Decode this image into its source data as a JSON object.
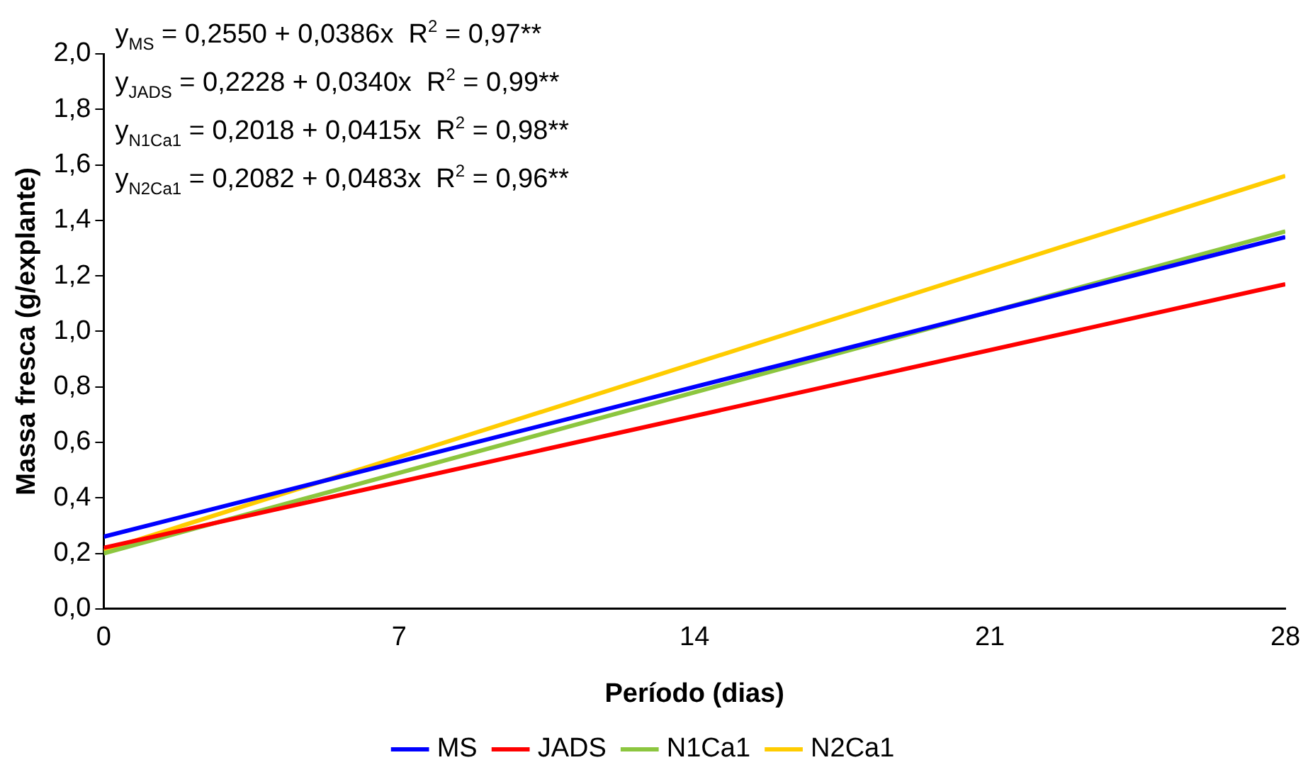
{
  "chart_data": {
    "type": "line",
    "xlabel": "Período (dias)",
    "ylabel": "Massa fresca (g/explante)",
    "x": [
      0,
      28
    ],
    "series": [
      {
        "name": "MS",
        "color": "#0000ff",
        "values": [
          0.26,
          1.34
        ]
      },
      {
        "name": "JADS",
        "color": "#ff0000",
        "values": [
          0.22,
          1.17
        ]
      },
      {
        "name": "N1Ca1",
        "color": "#8cc63f",
        "values": [
          0.2,
          1.36
        ]
      },
      {
        "name": "N2Ca1",
        "color": "#ffcc00",
        "values": [
          0.21,
          1.56
        ]
      }
    ],
    "xlim": [
      0,
      28
    ],
    "xticks": [
      0,
      7,
      14,
      21,
      28
    ],
    "ylim": [
      0,
      2
    ],
    "yticks": [
      {
        "value": 0,
        "label": "0,0"
      },
      {
        "value": 0.2,
        "label": "0,2"
      },
      {
        "value": 0.4,
        "label": "0,4"
      },
      {
        "value": 0.6,
        "label": "0,6"
      },
      {
        "value": 0.8,
        "label": "0,8"
      },
      {
        "value": 1,
        "label": "1,0"
      },
      {
        "value": 1.2,
        "label": "1,2"
      },
      {
        "value": 1.4,
        "label": "1,4"
      },
      {
        "value": 1.6,
        "label": "1,6"
      },
      {
        "value": 1.8,
        "label": "1,8"
      },
      {
        "value": 2,
        "label": "2,0"
      }
    ],
    "annotations": [
      "y$_{MS}$ = 0,2550 + 0,0386x  R$^{2}$ = 0,97**",
      "y$_{JADS}$ = 0,2228 + 0,0340x  R$^{2}$ = 0,99**",
      "y$_{N1Ca1}$ = 0,2018 + 0,0415x  R$^{2}$ = 0,98**",
      "y$_{N2Ca1}$ = 0,2082 + 0,0483x  R$^{2}$ = 0,96**"
    ],
    "grid": false,
    "legend": "bottom",
    "marker": "none",
    "line_style": "solid"
  }
}
